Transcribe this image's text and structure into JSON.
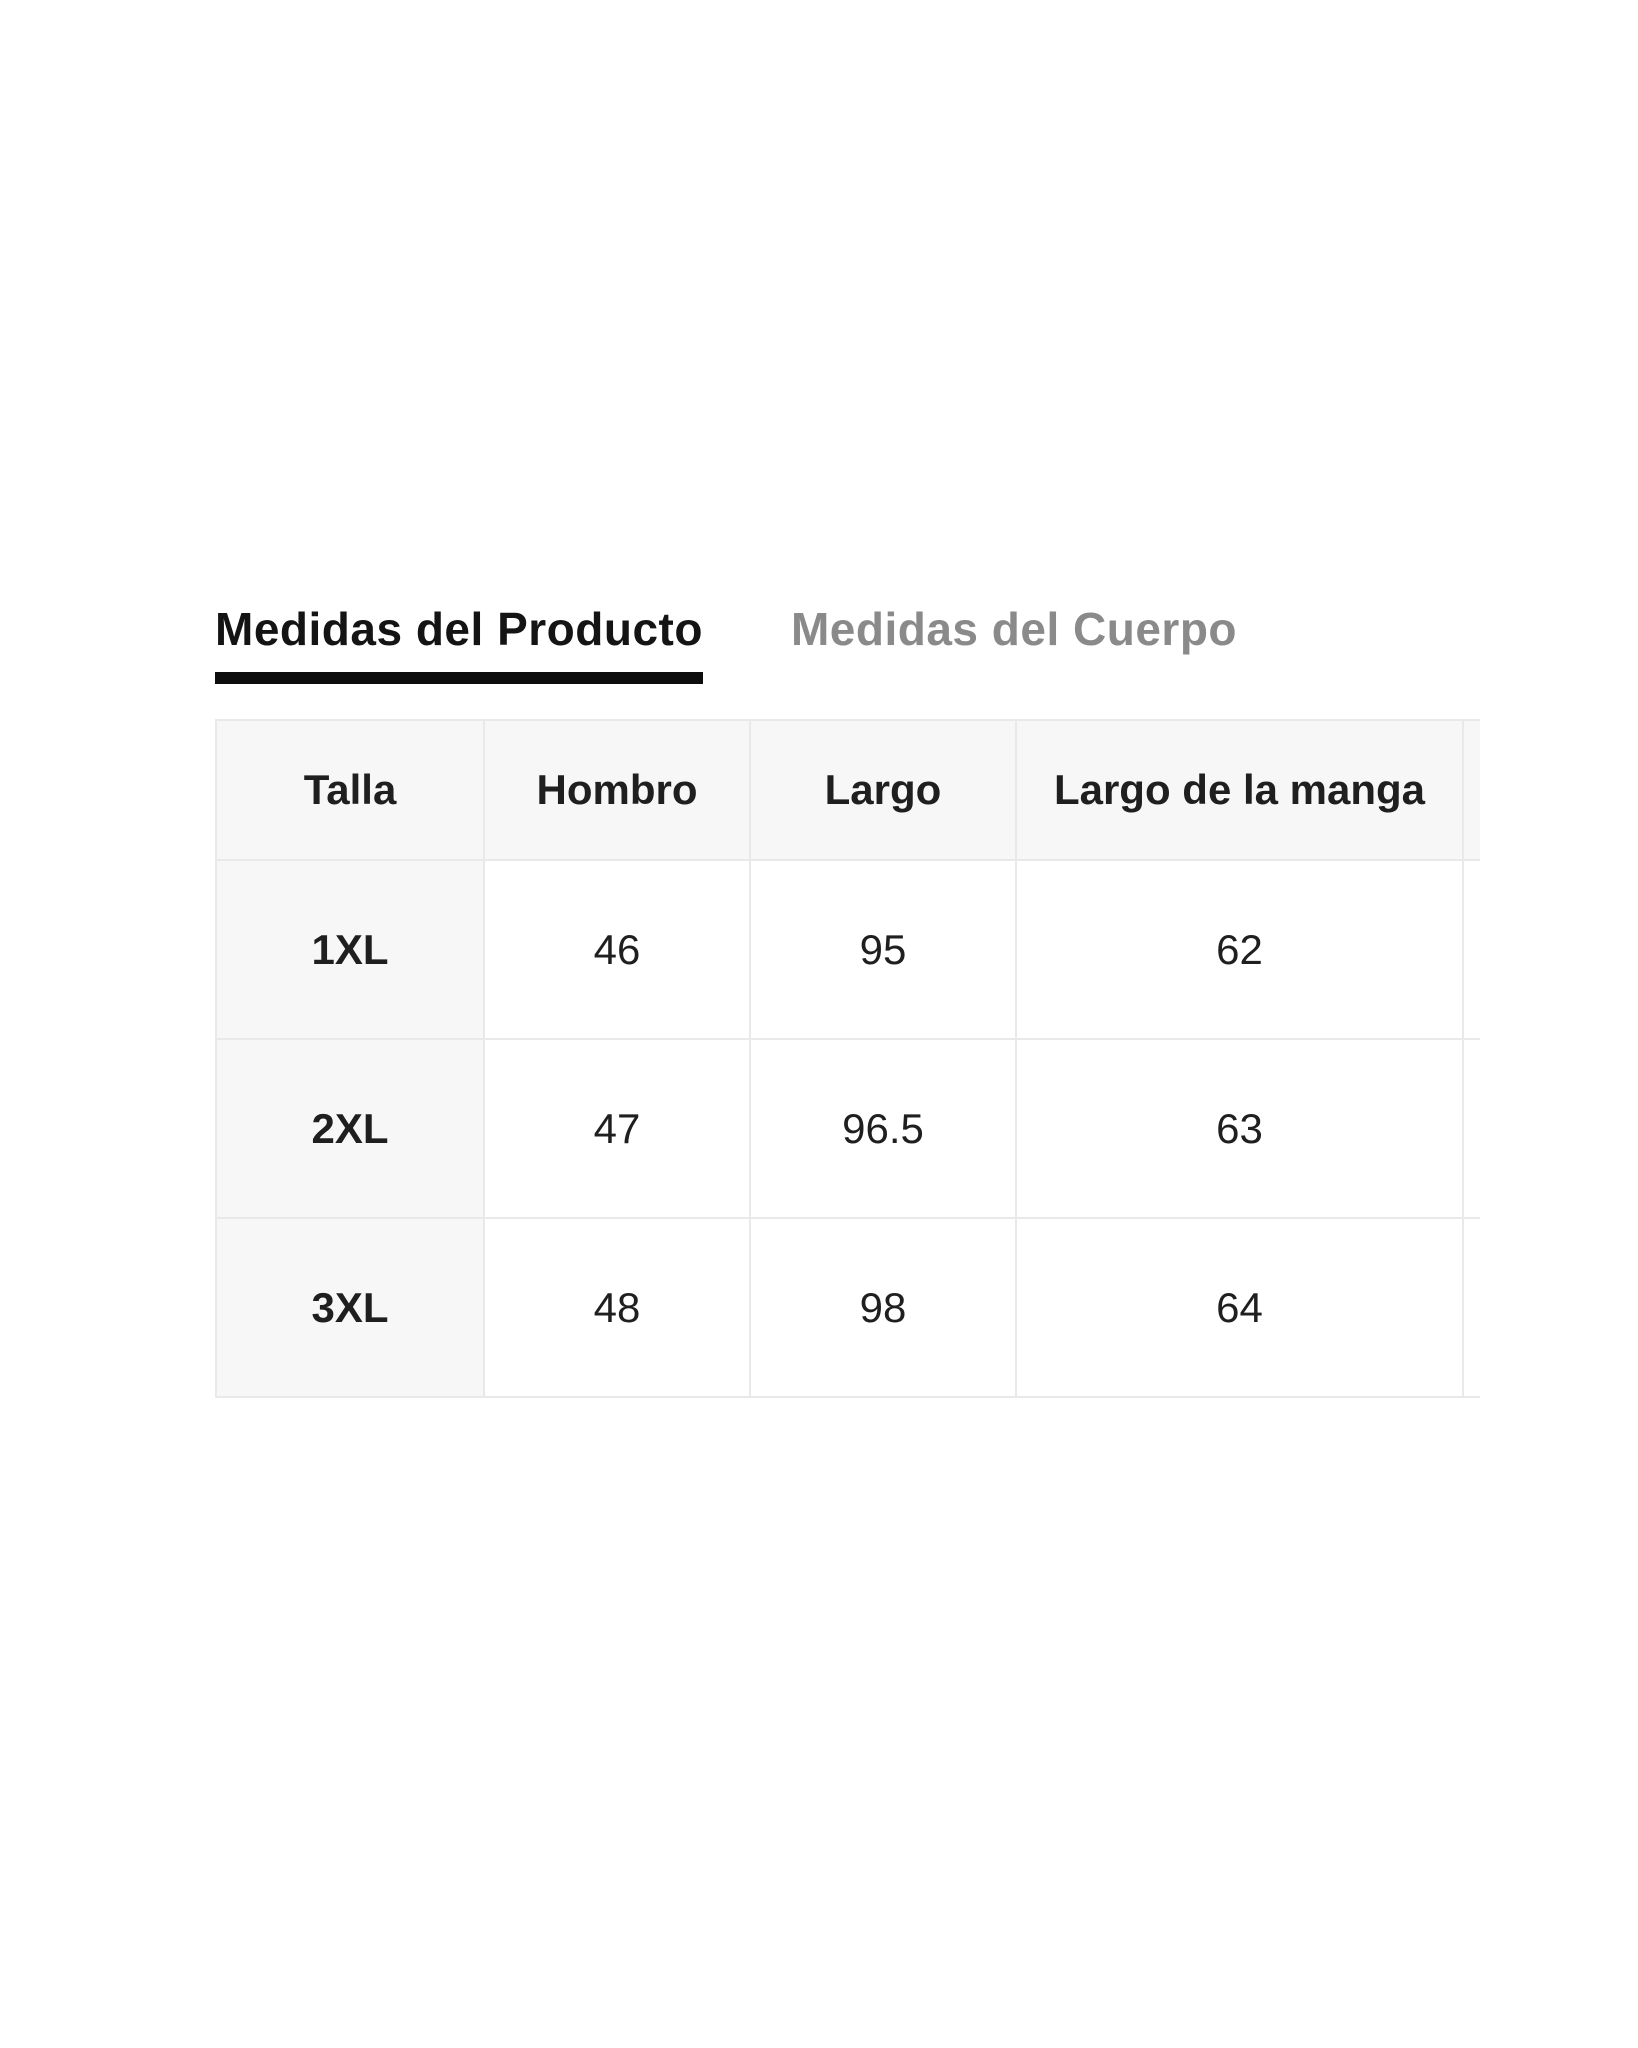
{
  "colors": {
    "page_background": "#ffffff",
    "active_tab_text": "#141414",
    "active_tab_underline": "#0d0d0d",
    "inactive_tab_text": "#8a8a8a",
    "table_border": "#e9e9e9",
    "header_cell_background": "#f7f7f7",
    "cell_text": "#1f1f1f"
  },
  "tabs": [
    {
      "label": "Medidas del Producto",
      "active": true
    },
    {
      "label": "Medidas del Cuerpo",
      "active": false
    }
  ],
  "size_chart": {
    "columns": [
      "Talla",
      "Hombro",
      "Largo",
      "Largo de la manga"
    ],
    "rows": [
      {
        "size": "1XL",
        "values": [
          "46",
          "95",
          "62"
        ]
      },
      {
        "size": "2XL",
        "values": [
          "47",
          "96.5",
          "63"
        ]
      },
      {
        "size": "3XL",
        "values": [
          "48",
          "98",
          "64"
        ]
      }
    ]
  }
}
